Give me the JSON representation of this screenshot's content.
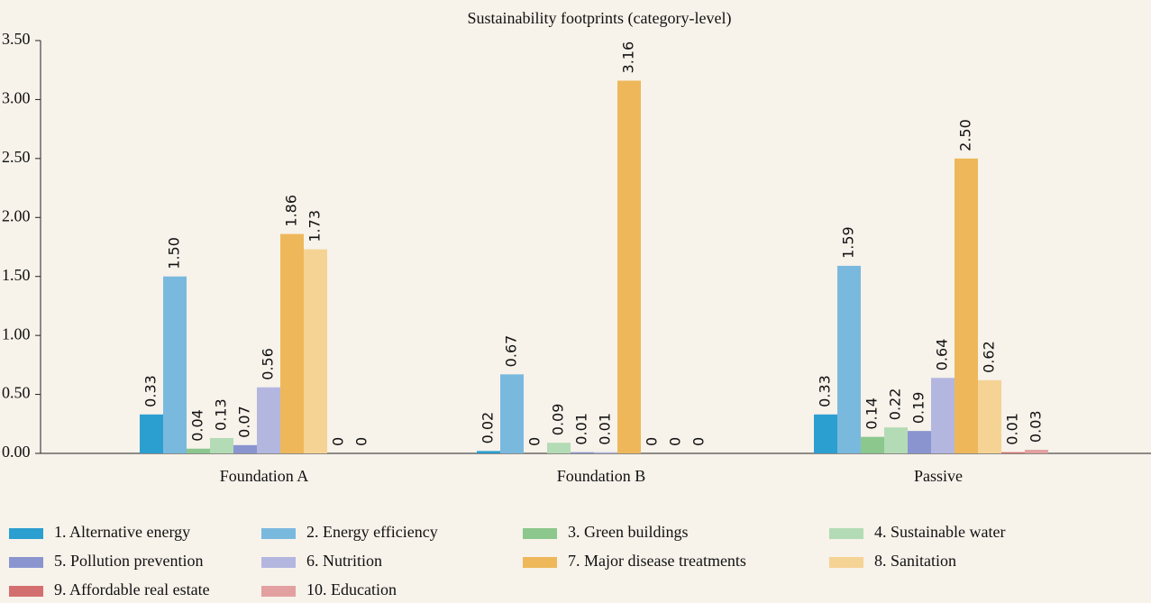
{
  "chart_data": {
    "type": "bar",
    "title": "Sustainability footprints (category-level)",
    "categories": [
      "Foundation A",
      "Foundation B",
      "Passive"
    ],
    "ylim": [
      0,
      3.5
    ],
    "yticks": [
      {
        "value": 0,
        "label": "0.00"
      },
      {
        "value": 0.5,
        "label": "0.50"
      },
      {
        "value": 1,
        "label": "1.00"
      },
      {
        "value": 1.5,
        "label": "1.50"
      },
      {
        "value": 2,
        "label": "2.00"
      },
      {
        "value": 2.5,
        "label": "2.50"
      },
      {
        "value": 3,
        "label": "3.00"
      },
      {
        "value": 3.5,
        "label": "3.50"
      }
    ],
    "legend": "bottom",
    "series": [
      {
        "name": "1. Alternative energy",
        "color": "#2b9fd0",
        "values": [
          0.33,
          0.02,
          0.33
        ],
        "value_labels": [
          "0.33",
          "0.02",
          "0.33"
        ]
      },
      {
        "name": "2. Energy efficiency",
        "color": "#7ab9de",
        "values": [
          1.5,
          0.67,
          1.59
        ],
        "value_labels": [
          "1.50",
          "0.67",
          "1.59"
        ]
      },
      {
        "name": "3. Green buildings",
        "color": "#8cc78e",
        "values": [
          0.04,
          0,
          0.14
        ],
        "value_labels": [
          "0.04",
          "0",
          "0.14"
        ]
      },
      {
        "name": "4. Sustainable water",
        "color": "#b3dbb5",
        "values": [
          0.13,
          0.09,
          0.22
        ],
        "value_labels": [
          "0.13",
          "0.09",
          "0.22"
        ]
      },
      {
        "name": "5. Pollution prevention",
        "color": "#8a95d0",
        "values": [
          0.07,
          0.01,
          0.19
        ],
        "value_labels": [
          "0.07",
          "0.01",
          "0.19"
        ]
      },
      {
        "name": "6. Nutrition",
        "color": "#b3b7e0",
        "values": [
          0.56,
          0.01,
          0.64
        ],
        "value_labels": [
          "0.56",
          "0.01",
          "0.64"
        ]
      },
      {
        "name": "7. Major disease treatments",
        "color": "#eeb85a",
        "values": [
          1.86,
          3.16,
          2.5
        ],
        "value_labels": [
          "1.86",
          "3.16",
          "2.50"
        ]
      },
      {
        "name": "8. Sanitation",
        "color": "#f5d394",
        "values": [
          1.73,
          0,
          0.62
        ],
        "value_labels": [
          "1.73",
          "0",
          "0.62"
        ]
      },
      {
        "name": "9. Affordable real estate",
        "color": "#d46f6f",
        "values": [
          0,
          0,
          0.01
        ],
        "value_labels": [
          "0",
          "0",
          "0.01"
        ]
      },
      {
        "name": "10. Education",
        "color": "#e3a0a0",
        "values": [
          0,
          0,
          0.03
        ],
        "value_labels": [
          "0",
          "0",
          "0.03"
        ]
      }
    ]
  }
}
